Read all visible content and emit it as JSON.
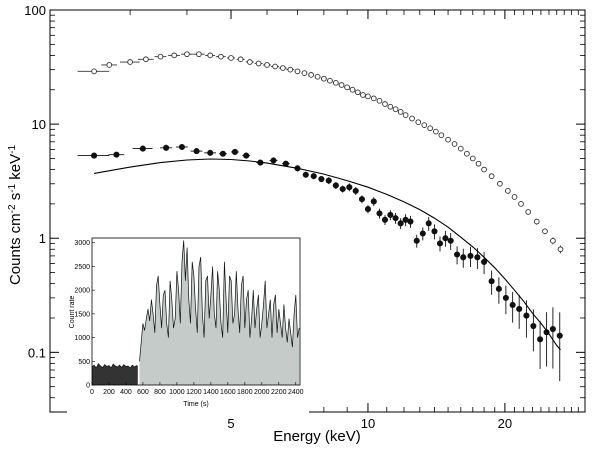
{
  "chart_data": [
    {
      "type": "scatter",
      "xlabel": "Energy (keV)",
      "ylabel": "Counts cm-2 s-1 keV-1",
      "x_scale": "log",
      "y_scale": "log",
      "xlim": [
        2.0,
        30.0
      ],
      "ylim": [
        0.03,
        100
      ],
      "x_ticks": [
        5,
        10,
        20
      ],
      "x_ticklabels": [
        "5",
        "10",
        "20"
      ],
      "y_ticks": [
        0.1,
        1,
        10,
        100
      ],
      "y_ticklabels": [
        "0.1",
        "1",
        "10",
        "100"
      ],
      "grid": false,
      "series": [
        {
          "marker": "open-circle",
          "color": "#333333",
          "x": [
            2.5,
            2.7,
            3.0,
            3.25,
            3.5,
            3.75,
            4.0,
            4.25,
            4.5,
            4.75,
            5.0,
            5.25,
            5.5,
            5.75,
            6.0,
            6.25,
            6.5,
            6.75,
            7.0,
            7.25,
            7.5,
            7.75,
            8.0,
            8.25,
            8.5,
            8.75,
            9.0,
            9.25,
            9.5,
            9.75,
            10.0,
            10.3,
            10.6,
            10.9,
            11.2,
            11.5,
            11.8,
            12.1,
            12.5,
            12.9,
            13.3,
            13.7,
            14.1,
            14.5,
            15.0,
            15.5,
            16.0,
            16.5,
            17.0,
            17.5,
            18.0,
            18.7,
            19.5,
            20.3,
            21.0,
            21.7,
            22.5,
            23.5,
            24.5,
            25.5,
            26.5
          ],
          "y": [
            29,
            33,
            35,
            37,
            39,
            40,
            41,
            41,
            40,
            39,
            38,
            37,
            35,
            34,
            33,
            32,
            31,
            30,
            29,
            28,
            27,
            26,
            25,
            24,
            23,
            22,
            21,
            20,
            19,
            18,
            17.5,
            16.8,
            16,
            15,
            14.2,
            13.5,
            12.8,
            12,
            11.2,
            10.4,
            9.8,
            9.2,
            8.6,
            8.0,
            7.3,
            6.7,
            6.1,
            5.5,
            5.0,
            4.5,
            4.0,
            3.5,
            3.0,
            2.6,
            2.3,
            2.0,
            1.7,
            1.4,
            1.15,
            0.95,
            0.8
          ],
          "yerr_rel": [
            0.04,
            0.04,
            0.03,
            0.03,
            0.03,
            0.03,
            0.03,
            0.03,
            0.03,
            0.03,
            0.03,
            0.03,
            0.03,
            0.03,
            0.03,
            0.03,
            0.03,
            0.03,
            0.03,
            0.03,
            0.03,
            0.03,
            0.03,
            0.03,
            0.03,
            0.03,
            0.03,
            0.03,
            0.03,
            0.03,
            0.03,
            0.03,
            0.03,
            0.03,
            0.03,
            0.03,
            0.03,
            0.03,
            0.03,
            0.03,
            0.03,
            0.03,
            0.03,
            0.03,
            0.03,
            0.03,
            0.04,
            0.04,
            0.04,
            0.04,
            0.04,
            0.04,
            0.04,
            0.05,
            0.05,
            0.05,
            0.05,
            0.06,
            0.06,
            0.07,
            0.08
          ],
          "xerr_rel": [
            0.08,
            0.04,
            0.05,
            0.04,
            0.03,
            0.03,
            0.03,
            0.03,
            0.025,
            0.025,
            0.02,
            0.02,
            0.02,
            0.02,
            0.02,
            0.02,
            0.02,
            0.02,
            0.015,
            0.015,
            0.015,
            0.015,
            0.015,
            0.015,
            0.015,
            0.015,
            0.015,
            0.015,
            0.015,
            0.015,
            0.012,
            0.012,
            0.012,
            0.012,
            0.012,
            0.012,
            0.012,
            0.012,
            0.012,
            0.012,
            0.012,
            0.012,
            0.012,
            0.012,
            0.012,
            0.012,
            0.012,
            0.012,
            0.012,
            0.012,
            0.012,
            0.012,
            0.012,
            0.012,
            0.012,
            0.012,
            0.012,
            0.012,
            0.012,
            0.012,
            0.012
          ]
        },
        {
          "marker": "filled-circle",
          "color": "#111111",
          "x": [
            2.5,
            2.8,
            3.2,
            3.6,
            3.9,
            4.2,
            4.5,
            4.8,
            5.1,
            5.4,
            5.8,
            6.2,
            6.6,
            7.0,
            7.3,
            7.6,
            7.9,
            8.2,
            8.5,
            8.8,
            9.1,
            9.4,
            9.7,
            10.0,
            10.3,
            10.6,
            10.9,
            11.2,
            11.5,
            11.8,
            12.1,
            12.4,
            12.8,
            13.2,
            13.6,
            14.0,
            14.4,
            14.8,
            15.2,
            15.7,
            16.2,
            16.8,
            17.4,
            18.0,
            18.7,
            19.4,
            20.1,
            20.8,
            21.5,
            22.3,
            23.1,
            23.9,
            24.7,
            25.5,
            26.4
          ],
          "y": [
            5.3,
            5.4,
            6.1,
            6.2,
            6.3,
            5.8,
            5.6,
            5.5,
            5.7,
            5.3,
            4.6,
            4.8,
            4.5,
            4.1,
            3.6,
            3.5,
            3.3,
            3.2,
            2.9,
            2.7,
            2.8,
            2.6,
            2.2,
            1.8,
            2.1,
            1.65,
            1.45,
            1.6,
            1.5,
            1.35,
            1.45,
            1.4,
            0.95,
            1.1,
            1.35,
            1.15,
            0.9,
            1.0,
            0.95,
            0.72,
            0.68,
            0.7,
            0.68,
            0.62,
            0.42,
            0.36,
            0.3,
            0.26,
            0.24,
            0.21,
            0.17,
            0.13,
            0.15,
            0.16,
            0.14
          ],
          "yerr_rel": [
            0.04,
            0.04,
            0.04,
            0.04,
            0.04,
            0.04,
            0.05,
            0.05,
            0.05,
            0.05,
            0.05,
            0.05,
            0.05,
            0.06,
            0.06,
            0.06,
            0.06,
            0.07,
            0.07,
            0.07,
            0.08,
            0.08,
            0.08,
            0.08,
            0.09,
            0.1,
            0.1,
            0.1,
            0.11,
            0.11,
            0.12,
            0.12,
            0.13,
            0.13,
            0.14,
            0.15,
            0.15,
            0.16,
            0.17,
            0.18,
            0.19,
            0.2,
            0.21,
            0.22,
            0.24,
            0.26,
            0.28,
            0.3,
            0.33,
            0.36,
            0.4,
            0.45,
            0.5,
            0.55,
            0.6
          ],
          "xerr_rel": [
            0.08,
            0.04,
            0.05,
            0.03,
            0.03,
            0.03,
            0.03,
            0.02,
            0.02,
            0.02,
            0.02,
            0.02,
            0.02,
            0.015,
            0.015,
            0.015,
            0.015,
            0.015,
            0.015,
            0.015,
            0.015,
            0.015,
            0.015,
            0.012,
            0.012,
            0.012,
            0.012,
            0.012,
            0.012,
            0.012,
            0.012,
            0.012,
            0.012,
            0.012,
            0.012,
            0.012,
            0.012,
            0.012,
            0.012,
            0.012,
            0.012,
            0.012,
            0.012,
            0.012,
            0.012,
            0.012,
            0.012,
            0.012,
            0.012,
            0.012,
            0.012,
            0.012,
            0.012,
            0.012,
            0.012
          ]
        },
        {
          "type": "line",
          "color": "#000000",
          "x": [
            2.5,
            3.0,
            3.5,
            4.0,
            4.5,
            5.0,
            5.5,
            6.0,
            7.0,
            8.0,
            9.0,
            10.0,
            11.0,
            12.0,
            13.0,
            14.0,
            15.0,
            16.0,
            17.0,
            18.0,
            19.0,
            20.0,
            21.0,
            22.0,
            23.0,
            24.0,
            25.0,
            26.0,
            26.5
          ],
          "y": [
            3.7,
            4.2,
            4.6,
            4.85,
            4.95,
            4.9,
            4.75,
            4.55,
            4.1,
            3.65,
            3.2,
            2.8,
            2.42,
            2.08,
            1.78,
            1.5,
            1.25,
            1.02,
            0.84,
            0.68,
            0.55,
            0.44,
            0.35,
            0.28,
            0.22,
            0.18,
            0.145,
            0.115,
            0.105
          ]
        }
      ]
    },
    {
      "type": "area",
      "xlabel": "Time (s)",
      "ylabel": "Count rate",
      "xlim": [
        0,
        2450
      ],
      "ylim": [
        0,
        3100
      ],
      "x_ticks": [
        0,
        200,
        400,
        600,
        800,
        1000,
        1200,
        1400,
        1600,
        1800,
        2000,
        2200,
        2400
      ],
      "x_ticklabels": [
        "0",
        "200",
        "400",
        "600",
        "800",
        "1000",
        "1200",
        "1400",
        "1600",
        "1800",
        "2000",
        "2200",
        "2400"
      ],
      "y_ticks": [
        0,
        500,
        1000,
        1500,
        2000,
        2500,
        3000
      ],
      "y_ticklabels": [
        "0",
        "500",
        "1000",
        "1500",
        "2000",
        "2500",
        "3000"
      ],
      "series": [
        {
          "fill": "#333333",
          "x": [
            0,
            25,
            50,
            75,
            100,
            125,
            150,
            175,
            200,
            225,
            250,
            275,
            300,
            325,
            350,
            375,
            400,
            425,
            450,
            475,
            500,
            525,
            540
          ],
          "y": [
            380,
            420,
            360,
            450,
            400,
            370,
            430,
            390,
            410,
            360,
            440,
            400,
            380,
            420,
            370,
            430,
            390,
            400,
            360,
            420,
            380,
            410,
            390
          ]
        },
        {
          "fill": "#c4cbc8",
          "x": [
            560,
            580,
            600,
            620,
            640,
            660,
            680,
            700,
            720,
            740,
            760,
            780,
            800,
            820,
            840,
            860,
            880,
            900,
            920,
            940,
            960,
            980,
            1000,
            1020,
            1040,
            1060,
            1080,
            1100,
            1120,
            1140,
            1160,
            1180,
            1200,
            1220,
            1240,
            1260,
            1280,
            1300,
            1320,
            1340,
            1360,
            1380,
            1400,
            1420,
            1440,
            1460,
            1480,
            1500,
            1520,
            1540,
            1560,
            1580,
            1600,
            1620,
            1640,
            1660,
            1680,
            1700,
            1720,
            1740,
            1760,
            1780,
            1800,
            1820,
            1840,
            1860,
            1880,
            1900,
            1920,
            1940,
            1960,
            1980,
            2000,
            2020,
            2040,
            2060,
            2080,
            2100,
            2120,
            2140,
            2160,
            2180,
            2200,
            2220,
            2240,
            2260,
            2280,
            2300,
            2320,
            2340,
            2360,
            2380,
            2400,
            2420,
            2440
          ],
          "y": [
            500,
            900,
            1300,
            1150,
            1400,
            1600,
            1350,
            1800,
            1500,
            1100,
            2100,
            2300,
            1700,
            1200,
            1900,
            2000,
            1300,
            1000,
            2200,
            1800,
            1200,
            1400,
            2400,
            2000,
            1300,
            2600,
            3050,
            2200,
            2900,
            1800,
            1300,
            2600,
            2300,
            1600,
            1100,
            2500,
            2700,
            1500,
            1000,
            2200,
            2300,
            1400,
            1900,
            2500,
            1500,
            1200,
            2400,
            2000,
            1300,
            1000,
            2600,
            1800,
            1100,
            2300,
            2200,
            1300,
            1500,
            2400,
            1600,
            1100,
            2100,
            2300,
            1200,
            1800,
            2000,
            1000,
            1400,
            2000,
            1200,
            1600,
            1900,
            1000,
            1300,
            1700,
            2200,
            1200,
            1500,
            1800,
            1000,
            1700,
            1900,
            1100,
            1600,
            1300,
            1000,
            1700,
            1200,
            900,
            1400,
            1100,
            800,
            1500,
            1900,
            1000,
            1200
          ]
        }
      ]
    }
  ]
}
